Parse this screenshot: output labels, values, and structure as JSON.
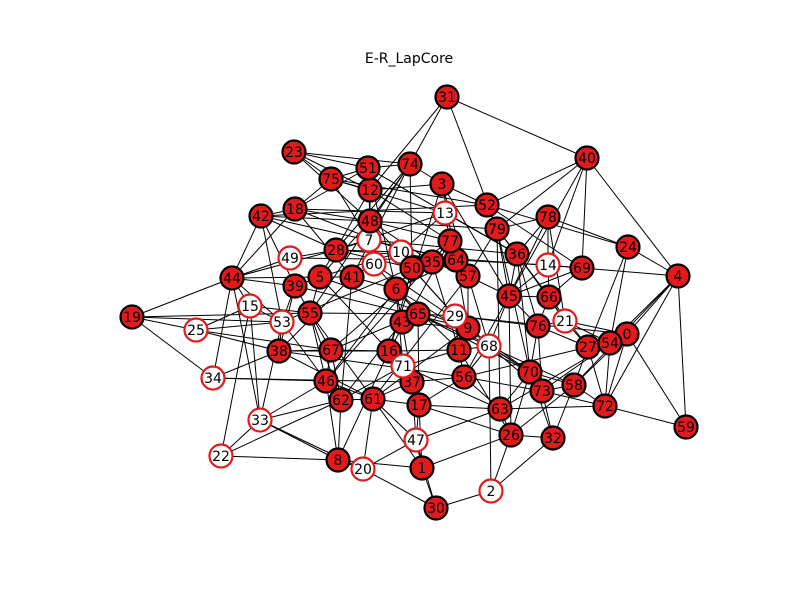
{
  "title": "E-R_LapCore",
  "colors": {
    "filled_fill": "#e31a1c",
    "filled_stroke": "#000000",
    "hollow_fill": "#ffffff",
    "hollow_stroke": "#e31a1c",
    "edge": "#000000",
    "background": "#ffffff"
  },
  "nodes": [
    {
      "label": "0",
      "style": "filled"
    },
    {
      "label": "1",
      "style": "filled"
    },
    {
      "label": "2",
      "style": "hollow"
    },
    {
      "label": "3",
      "style": "filled"
    },
    {
      "label": "4",
      "style": "filled"
    },
    {
      "label": "5",
      "style": "filled"
    },
    {
      "label": "6",
      "style": "filled"
    },
    {
      "label": "7",
      "style": "hollow"
    },
    {
      "label": "8",
      "style": "filled"
    },
    {
      "label": "9",
      "style": "filled"
    },
    {
      "label": "10",
      "style": "hollow"
    },
    {
      "label": "11",
      "style": "filled"
    },
    {
      "label": "12",
      "style": "filled"
    },
    {
      "label": "13",
      "style": "hollow"
    },
    {
      "label": "14",
      "style": "hollow"
    },
    {
      "label": "15",
      "style": "hollow"
    },
    {
      "label": "16",
      "style": "filled"
    },
    {
      "label": "17",
      "style": "filled"
    },
    {
      "label": "18",
      "style": "filled"
    },
    {
      "label": "19",
      "style": "filled"
    },
    {
      "label": "20",
      "style": "hollow"
    },
    {
      "label": "21",
      "style": "hollow"
    },
    {
      "label": "22",
      "style": "hollow"
    },
    {
      "label": "23",
      "style": "filled"
    },
    {
      "label": "24",
      "style": "filled"
    },
    {
      "label": "25",
      "style": "hollow"
    },
    {
      "label": "26",
      "style": "filled"
    },
    {
      "label": "27",
      "style": "filled"
    },
    {
      "label": "28",
      "style": "filled"
    },
    {
      "label": "29",
      "style": "hollow"
    },
    {
      "label": "30",
      "style": "filled"
    },
    {
      "label": "31",
      "style": "filled"
    },
    {
      "label": "32",
      "style": "filled"
    },
    {
      "label": "33",
      "style": "hollow"
    },
    {
      "label": "34",
      "style": "hollow"
    },
    {
      "label": "35",
      "style": "filled"
    },
    {
      "label": "36",
      "style": "filled"
    },
    {
      "label": "37",
      "style": "filled"
    },
    {
      "label": "38",
      "style": "filled"
    },
    {
      "label": "39",
      "style": "filled"
    },
    {
      "label": "40",
      "style": "filled"
    },
    {
      "label": "41",
      "style": "filled"
    },
    {
      "label": "42",
      "style": "filled"
    },
    {
      "label": "43",
      "style": "filled"
    },
    {
      "label": "44",
      "style": "filled"
    },
    {
      "label": "45",
      "style": "filled"
    },
    {
      "label": "46",
      "style": "filled"
    },
    {
      "label": "47",
      "style": "hollow"
    },
    {
      "label": "48",
      "style": "filled"
    },
    {
      "label": "49",
      "style": "hollow"
    },
    {
      "label": "50",
      "style": "filled"
    },
    {
      "label": "51",
      "style": "filled"
    },
    {
      "label": "52",
      "style": "filled"
    },
    {
      "label": "53",
      "style": "hollow"
    },
    {
      "label": "54",
      "style": "filled"
    },
    {
      "label": "55",
      "style": "filled"
    },
    {
      "label": "56",
      "style": "filled"
    },
    {
      "label": "57",
      "style": "filled"
    },
    {
      "label": "58",
      "style": "filled"
    },
    {
      "label": "59",
      "style": "filled"
    },
    {
      "label": "60",
      "style": "hollow"
    },
    {
      "label": "61",
      "style": "filled"
    },
    {
      "label": "62",
      "style": "filled"
    },
    {
      "label": "63",
      "style": "filled"
    },
    {
      "label": "64",
      "style": "filled"
    },
    {
      "label": "65",
      "style": "filled"
    },
    {
      "label": "66",
      "style": "filled"
    },
    {
      "label": "67",
      "style": "filled"
    },
    {
      "label": "68",
      "style": "hollow"
    },
    {
      "label": "69",
      "style": "filled"
    },
    {
      "label": "70",
      "style": "filled"
    },
    {
      "label": "71",
      "style": "hollow"
    },
    {
      "label": "72",
      "style": "filled"
    },
    {
      "label": "73",
      "style": "filled"
    },
    {
      "label": "74",
      "style": "filled"
    },
    {
      "label": "75",
      "style": "filled"
    },
    {
      "label": "76",
      "style": "filled"
    },
    {
      "label": "77",
      "style": "filled"
    },
    {
      "label": "78",
      "style": "filled"
    },
    {
      "label": "79",
      "style": "filled"
    }
  ],
  "edges": [
    [
      31,
      74
    ],
    [
      31,
      12
    ],
    [
      31,
      40
    ],
    [
      31,
      79
    ],
    [
      40,
      4
    ],
    [
      40,
      79
    ],
    [
      40,
      52
    ],
    [
      40,
      69
    ],
    [
      40,
      14
    ],
    [
      40,
      45
    ],
    [
      23,
      51
    ],
    [
      23,
      75
    ],
    [
      23,
      74
    ],
    [
      23,
      12
    ],
    [
      23,
      48
    ],
    [
      51,
      75
    ],
    [
      51,
      74
    ],
    [
      51,
      18
    ],
    [
      51,
      48
    ],
    [
      51,
      6
    ],
    [
      51,
      36
    ],
    [
      74,
      3
    ],
    [
      74,
      48
    ],
    [
      74,
      28
    ],
    [
      74,
      50
    ],
    [
      74,
      41
    ],
    [
      74,
      55
    ],
    [
      75,
      52
    ],
    [
      75,
      18
    ],
    [
      75,
      7
    ],
    [
      75,
      13
    ],
    [
      75,
      12
    ],
    [
      12,
      5
    ],
    [
      12,
      77
    ],
    [
      12,
      48
    ],
    [
      12,
      3
    ],
    [
      3,
      52
    ],
    [
      3,
      45
    ],
    [
      3,
      64
    ],
    [
      3,
      16
    ],
    [
      3,
      57
    ],
    [
      52,
      24
    ],
    [
      52,
      69
    ],
    [
      52,
      42
    ],
    [
      52,
      79
    ],
    [
      78,
      24
    ],
    [
      78,
      21
    ],
    [
      78,
      36
    ],
    [
      78,
      45
    ],
    [
      78,
      14
    ],
    [
      78,
      79
    ],
    [
      42,
      18
    ],
    [
      42,
      48
    ],
    [
      42,
      44
    ],
    [
      42,
      64
    ],
    [
      42,
      39
    ],
    [
      42,
      28
    ],
    [
      42,
      53
    ],
    [
      18,
      48
    ],
    [
      18,
      57
    ],
    [
      18,
      44
    ],
    [
      18,
      41
    ],
    [
      18,
      13
    ],
    [
      48,
      77
    ],
    [
      48,
      79
    ],
    [
      48,
      29
    ],
    [
      48,
      5
    ],
    [
      48,
      60
    ],
    [
      48,
      35
    ],
    [
      13,
      77
    ],
    [
      13,
      10
    ],
    [
      13,
      28
    ],
    [
      13,
      36
    ],
    [
      79,
      36
    ],
    [
      79,
      27
    ],
    [
      79,
      63
    ],
    [
      79,
      70
    ],
    [
      79,
      45
    ],
    [
      79,
      57
    ],
    [
      7,
      28
    ],
    [
      7,
      36
    ],
    [
      7,
      64
    ],
    [
      77,
      64
    ],
    [
      77,
      50
    ],
    [
      77,
      16
    ],
    [
      77,
      46
    ],
    [
      24,
      54
    ],
    [
      24,
      27
    ],
    [
      28,
      44
    ],
    [
      28,
      50
    ],
    [
      28,
      69
    ],
    [
      28,
      49
    ],
    [
      28,
      10
    ],
    [
      10,
      35
    ],
    [
      10,
      5
    ],
    [
      36,
      45
    ],
    [
      36,
      70
    ],
    [
      36,
      66
    ],
    [
      36,
      76
    ],
    [
      36,
      21
    ],
    [
      49,
      44
    ],
    [
      49,
      64
    ],
    [
      60,
      41
    ],
    [
      60,
      65
    ],
    [
      60,
      9
    ],
    [
      64,
      57
    ],
    [
      64,
      6
    ],
    [
      64,
      9
    ],
    [
      64,
      14
    ],
    [
      35,
      50
    ],
    [
      35,
      67
    ],
    [
      35,
      11
    ],
    [
      50,
      6
    ],
    [
      50,
      46
    ],
    [
      50,
      16
    ],
    [
      50,
      53
    ],
    [
      50,
      29
    ],
    [
      14,
      69
    ],
    [
      14,
      66
    ],
    [
      14,
      45
    ],
    [
      69,
      4
    ],
    [
      69,
      66
    ],
    [
      69,
      45
    ],
    [
      4,
      24
    ],
    [
      4,
      54
    ],
    [
      4,
      0
    ],
    [
      4,
      72
    ],
    [
      4,
      59
    ],
    [
      4,
      58
    ],
    [
      44,
      5
    ],
    [
      44,
      15
    ],
    [
      44,
      34
    ],
    [
      44,
      39
    ],
    [
      44,
      53
    ],
    [
      44,
      19
    ],
    [
      44,
      33
    ],
    [
      5,
      39
    ],
    [
      5,
      41
    ],
    [
      5,
      55
    ],
    [
      5,
      16
    ],
    [
      5,
      9
    ],
    [
      41,
      6
    ],
    [
      41,
      62
    ],
    [
      41,
      38
    ],
    [
      57,
      45
    ],
    [
      57,
      68
    ],
    [
      57,
      61
    ],
    [
      57,
      9
    ],
    [
      39,
      38
    ],
    [
      39,
      53
    ],
    [
      39,
      55
    ],
    [
      39,
      9
    ],
    [
      6,
      65
    ],
    [
      6,
      43
    ],
    [
      6,
      70
    ],
    [
      6,
      11
    ],
    [
      6,
      71
    ],
    [
      15,
      53
    ],
    [
      15,
      33
    ],
    [
      15,
      55
    ],
    [
      15,
      25
    ],
    [
      15,
      22
    ],
    [
      45,
      66
    ],
    [
      45,
      76
    ],
    [
      45,
      68
    ],
    [
      45,
      56
    ],
    [
      45,
      26
    ],
    [
      66,
      76
    ],
    [
      66,
      21
    ],
    [
      19,
      25
    ],
    [
      19,
      34
    ],
    [
      19,
      53
    ],
    [
      19,
      55
    ],
    [
      55,
      65
    ],
    [
      55,
      46
    ],
    [
      55,
      62
    ],
    [
      55,
      61
    ],
    [
      55,
      67
    ],
    [
      53,
      38
    ],
    [
      53,
      33
    ],
    [
      53,
      46
    ],
    [
      53,
      25
    ],
    [
      65,
      29
    ],
    [
      65,
      17
    ],
    [
      65,
      67
    ],
    [
      65,
      70
    ],
    [
      65,
      58
    ],
    [
      43,
      9
    ],
    [
      43,
      37
    ],
    [
      43,
      62
    ],
    [
      29,
      9
    ],
    [
      29,
      76
    ],
    [
      29,
      0
    ],
    [
      29,
      11
    ],
    [
      9,
      11
    ],
    [
      9,
      70
    ],
    [
      9,
      73
    ],
    [
      9,
      61
    ],
    [
      21,
      76
    ],
    [
      21,
      0
    ],
    [
      21,
      54
    ],
    [
      21,
      27
    ],
    [
      76,
      27
    ],
    [
      76,
      73
    ],
    [
      76,
      70
    ],
    [
      0,
      54
    ],
    [
      0,
      58
    ],
    [
      0,
      72
    ],
    [
      0,
      59
    ],
    [
      0,
      63
    ],
    [
      25,
      38
    ],
    [
      25,
      67
    ],
    [
      54,
      27
    ],
    [
      54,
      72
    ],
    [
      54,
      73
    ],
    [
      27,
      58
    ],
    [
      27,
      72
    ],
    [
      27,
      56
    ],
    [
      68,
      11
    ],
    [
      68,
      70
    ],
    [
      68,
      56
    ],
    [
      68,
      2
    ],
    [
      38,
      67
    ],
    [
      38,
      16
    ],
    [
      38,
      61
    ],
    [
      38,
      34
    ],
    [
      38,
      56
    ],
    [
      67,
      16
    ],
    [
      67,
      46
    ],
    [
      67,
      62
    ],
    [
      16,
      71
    ],
    [
      16,
      11
    ],
    [
      16,
      37
    ],
    [
      16,
      8
    ],
    [
      16,
      17
    ],
    [
      11,
      56
    ],
    [
      11,
      71
    ],
    [
      11,
      26
    ],
    [
      71,
      37
    ],
    [
      71,
      62
    ],
    [
      71,
      63
    ],
    [
      70,
      73
    ],
    [
      70,
      58
    ],
    [
      70,
      63
    ],
    [
      70,
      26
    ],
    [
      70,
      32
    ],
    [
      34,
      46
    ],
    [
      34,
      37
    ],
    [
      46,
      62
    ],
    [
      46,
      61
    ],
    [
      46,
      8
    ],
    [
      46,
      33
    ],
    [
      37,
      17
    ],
    [
      37,
      56
    ],
    [
      37,
      47
    ],
    [
      37,
      61
    ],
    [
      56,
      63
    ],
    [
      56,
      73
    ],
    [
      56,
      17
    ],
    [
      73,
      58
    ],
    [
      73,
      32
    ],
    [
      73,
      72
    ],
    [
      58,
      72
    ],
    [
      58,
      26
    ],
    [
      58,
      32
    ],
    [
      62,
      61
    ],
    [
      62,
      8
    ],
    [
      62,
      22
    ],
    [
      61,
      17
    ],
    [
      61,
      20
    ],
    [
      61,
      1
    ],
    [
      61,
      47
    ],
    [
      17,
      47
    ],
    [
      17,
      63
    ],
    [
      17,
      26
    ],
    [
      17,
      1
    ],
    [
      72,
      59
    ],
    [
      72,
      63
    ],
    [
      63,
      26
    ],
    [
      63,
      47
    ],
    [
      33,
      8
    ],
    [
      33,
      62
    ],
    [
      33,
      20
    ],
    [
      26,
      32
    ],
    [
      26,
      2
    ],
    [
      26,
      1
    ],
    [
      32,
      2
    ],
    [
      47,
      20
    ],
    [
      47,
      1
    ],
    [
      47,
      30
    ],
    [
      22,
      8
    ],
    [
      22,
      33
    ],
    [
      8,
      20
    ],
    [
      8,
      1
    ],
    [
      20,
      30
    ],
    [
      1,
      30
    ],
    [
      2,
      30
    ]
  ]
}
